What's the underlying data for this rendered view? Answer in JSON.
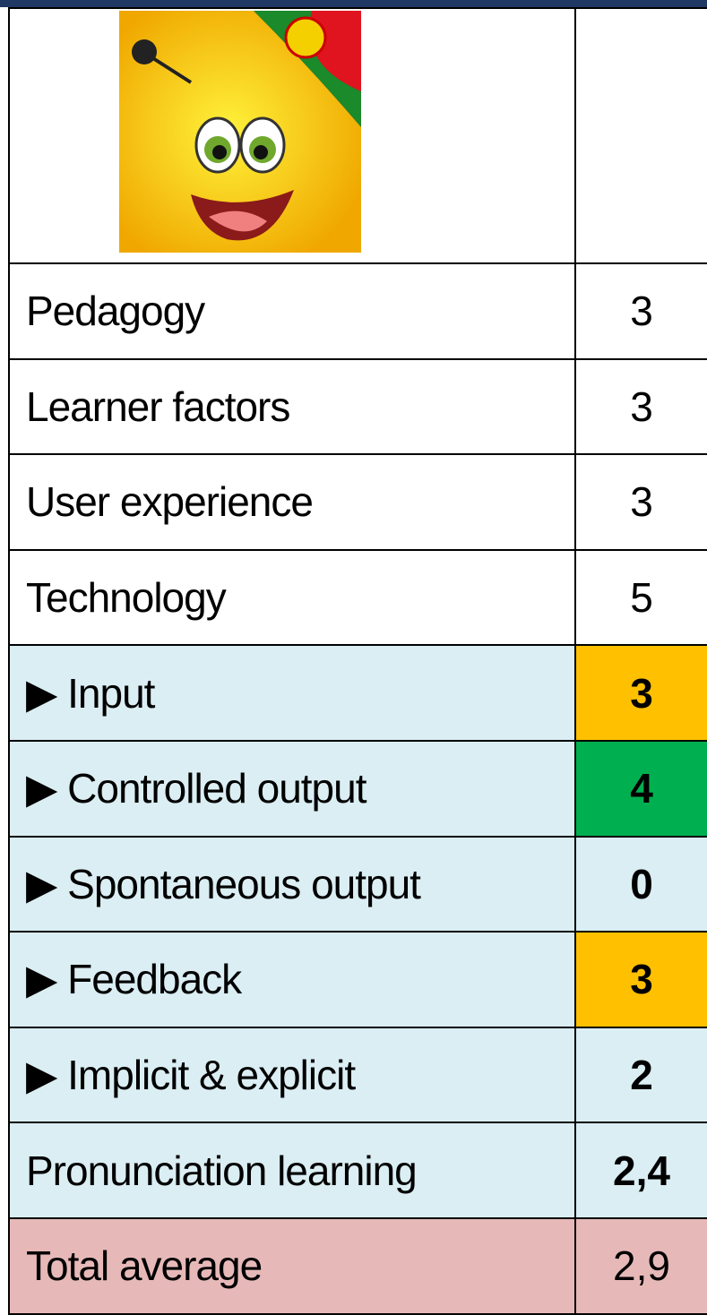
{
  "table": {
    "rows": [
      {
        "label": "Pedagogy",
        "value": "3"
      },
      {
        "label": "Learner factors",
        "value": "3"
      },
      {
        "label": "User experience",
        "value": "3"
      },
      {
        "label": "Technology",
        "value": "5"
      },
      {
        "label": "▶ Input",
        "value": "3"
      },
      {
        "label": "▶ Controlled output",
        "value": "4"
      },
      {
        "label": "▶ Spontaneous output",
        "value": "0"
      },
      {
        "label": "▶ Feedback",
        "value": "3"
      },
      {
        "label": "▶ Implicit & explicit",
        "value": "2"
      },
      {
        "label": "Pronunciation learning",
        "value": "2,4"
      },
      {
        "label": "Total average",
        "value": "2,9"
      }
    ]
  }
}
